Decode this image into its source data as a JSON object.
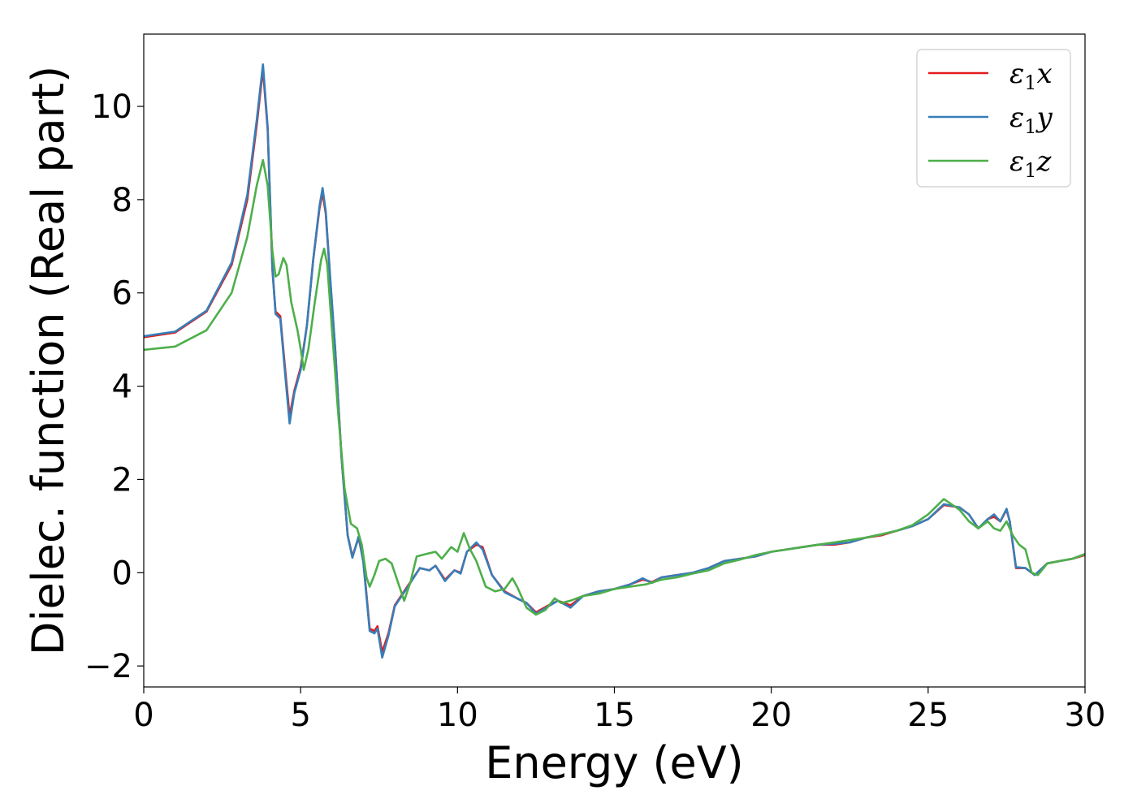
{
  "chart_data": {
    "type": "line",
    "title": "",
    "xlabel": "Energy (eV)",
    "ylabel": "Dielec. function (Real part)",
    "xlim": [
      0,
      30
    ],
    "ylim": [
      -2.45,
      11.55
    ],
    "x_ticks": [
      0,
      5,
      10,
      15,
      20,
      25,
      30
    ],
    "x_tick_labels": [
      "0",
      "5",
      "10",
      "15",
      "20",
      "25",
      "30"
    ],
    "y_ticks": [
      -2,
      0,
      2,
      4,
      6,
      8,
      10
    ],
    "y_tick_labels": [
      "−2",
      "0",
      "2",
      "4",
      "6",
      "8",
      "10"
    ],
    "grid": false,
    "legend_position": "top-right",
    "series": [
      {
        "name": "ε1x",
        "symbol": "ε",
        "subscript": "1",
        "component": "x",
        "color": "#e41a1c",
        "points": [
          [
            0,
            5.05
          ],
          [
            1,
            5.15
          ],
          [
            2,
            5.6
          ],
          [
            2.8,
            6.6
          ],
          [
            3.3,
            8.0
          ],
          [
            3.6,
            9.6
          ],
          [
            3.8,
            10.8
          ],
          [
            3.95,
            9.5
          ],
          [
            4.1,
            6.5
          ],
          [
            4.2,
            5.6
          ],
          [
            4.35,
            5.5
          ],
          [
            4.5,
            4.4
          ],
          [
            4.65,
            3.35
          ],
          [
            4.8,
            3.9
          ],
          [
            5.0,
            4.4
          ],
          [
            5.2,
            5.3
          ],
          [
            5.4,
            6.7
          ],
          [
            5.6,
            7.8
          ],
          [
            5.7,
            8.15
          ],
          [
            5.8,
            7.7
          ],
          [
            5.95,
            6.2
          ],
          [
            6.1,
            4.8
          ],
          [
            6.3,
            2.5
          ],
          [
            6.5,
            0.8
          ],
          [
            6.65,
            0.35
          ],
          [
            6.85,
            0.75
          ],
          [
            7.0,
            0.25
          ],
          [
            7.2,
            -1.2
          ],
          [
            7.35,
            -1.25
          ],
          [
            7.45,
            -1.15
          ],
          [
            7.6,
            -1.7
          ],
          [
            7.8,
            -1.3
          ],
          [
            8.0,
            -0.7
          ],
          [
            8.4,
            -0.3
          ],
          [
            8.8,
            0.1
          ],
          [
            9.1,
            0.05
          ],
          [
            9.3,
            0.15
          ],
          [
            9.6,
            -0.15
          ],
          [
            9.9,
            0.05
          ],
          [
            10.1,
            0.0
          ],
          [
            10.3,
            0.45
          ],
          [
            10.6,
            0.6
          ],
          [
            10.8,
            0.55
          ],
          [
            11.1,
            -0.05
          ],
          [
            11.5,
            -0.4
          ],
          [
            11.9,
            -0.55
          ],
          [
            12.2,
            -0.65
          ],
          [
            12.5,
            -0.85
          ],
          [
            12.9,
            -0.7
          ],
          [
            13.2,
            -0.6
          ],
          [
            13.6,
            -0.7
          ],
          [
            14.0,
            -0.5
          ],
          [
            14.5,
            -0.4
          ],
          [
            15.0,
            -0.35
          ],
          [
            15.5,
            -0.25
          ],
          [
            15.9,
            -0.15
          ],
          [
            16.2,
            -0.2
          ],
          [
            16.5,
            -0.1
          ],
          [
            17.0,
            -0.05
          ],
          [
            17.5,
            0.0
          ],
          [
            18.0,
            0.1
          ],
          [
            18.5,
            0.25
          ],
          [
            19.0,
            0.3
          ],
          [
            19.5,
            0.35
          ],
          [
            20.0,
            0.45
          ],
          [
            20.5,
            0.5
          ],
          [
            21.0,
            0.55
          ],
          [
            21.5,
            0.6
          ],
          [
            22.0,
            0.6
          ],
          [
            22.5,
            0.65
          ],
          [
            23.0,
            0.75
          ],
          [
            23.5,
            0.8
          ],
          [
            24.0,
            0.9
          ],
          [
            24.5,
            1.0
          ],
          [
            25.0,
            1.15
          ],
          [
            25.5,
            1.45
          ],
          [
            26.0,
            1.4
          ],
          [
            26.3,
            1.25
          ],
          [
            26.6,
            0.95
          ],
          [
            26.9,
            1.15
          ],
          [
            27.1,
            1.2
          ],
          [
            27.3,
            1.1
          ],
          [
            27.5,
            1.35
          ],
          [
            27.6,
            1.1
          ],
          [
            27.8,
            0.1
          ],
          [
            28.1,
            0.1
          ],
          [
            28.4,
            -0.05
          ],
          [
            28.8,
            0.2
          ],
          [
            29.2,
            0.25
          ],
          [
            29.6,
            0.3
          ],
          [
            30,
            0.38
          ]
        ]
      },
      {
        "name": "ε1y",
        "symbol": "ε",
        "subscript": "1",
        "component": "y",
        "color": "#377eb8",
        "points": [
          [
            0,
            5.07
          ],
          [
            1,
            5.17
          ],
          [
            2,
            5.62
          ],
          [
            2.8,
            6.65
          ],
          [
            3.3,
            8.1
          ],
          [
            3.6,
            9.7
          ],
          [
            3.8,
            10.9
          ],
          [
            3.95,
            9.55
          ],
          [
            4.1,
            6.55
          ],
          [
            4.2,
            5.55
          ],
          [
            4.35,
            5.45
          ],
          [
            4.5,
            4.3
          ],
          [
            4.65,
            3.2
          ],
          [
            4.8,
            3.85
          ],
          [
            5.0,
            4.35
          ],
          [
            5.2,
            5.3
          ],
          [
            5.4,
            6.7
          ],
          [
            5.6,
            7.85
          ],
          [
            5.7,
            8.25
          ],
          [
            5.8,
            7.75
          ],
          [
            5.95,
            6.25
          ],
          [
            6.1,
            4.8
          ],
          [
            6.3,
            2.5
          ],
          [
            6.5,
            0.8
          ],
          [
            6.65,
            0.32
          ],
          [
            6.85,
            0.78
          ],
          [
            7.0,
            0.22
          ],
          [
            7.2,
            -1.25
          ],
          [
            7.35,
            -1.3
          ],
          [
            7.45,
            -1.2
          ],
          [
            7.6,
            -1.82
          ],
          [
            7.8,
            -1.35
          ],
          [
            8.0,
            -0.72
          ],
          [
            8.4,
            -0.32
          ],
          [
            8.8,
            0.1
          ],
          [
            9.1,
            0.05
          ],
          [
            9.3,
            0.15
          ],
          [
            9.6,
            -0.18
          ],
          [
            9.9,
            0.05
          ],
          [
            10.1,
            -0.02
          ],
          [
            10.3,
            0.45
          ],
          [
            10.6,
            0.65
          ],
          [
            10.8,
            0.5
          ],
          [
            11.1,
            -0.05
          ],
          [
            11.5,
            -0.42
          ],
          [
            11.9,
            -0.55
          ],
          [
            12.2,
            -0.65
          ],
          [
            12.5,
            -0.88
          ],
          [
            12.9,
            -0.72
          ],
          [
            13.2,
            -0.6
          ],
          [
            13.6,
            -0.75
          ],
          [
            14.0,
            -0.5
          ],
          [
            14.5,
            -0.4
          ],
          [
            15.0,
            -0.35
          ],
          [
            15.5,
            -0.25
          ],
          [
            15.9,
            -0.12
          ],
          [
            16.2,
            -0.22
          ],
          [
            16.5,
            -0.1
          ],
          [
            17.0,
            -0.05
          ],
          [
            17.5,
            0.0
          ],
          [
            18.0,
            0.1
          ],
          [
            18.5,
            0.25
          ],
          [
            19.0,
            0.3
          ],
          [
            19.5,
            0.35
          ],
          [
            20.0,
            0.45
          ],
          [
            20.5,
            0.5
          ],
          [
            21.0,
            0.55
          ],
          [
            21.5,
            0.6
          ],
          [
            22.0,
            0.62
          ],
          [
            22.5,
            0.65
          ],
          [
            23.0,
            0.75
          ],
          [
            23.5,
            0.82
          ],
          [
            24.0,
            0.9
          ],
          [
            24.5,
            1.0
          ],
          [
            25.0,
            1.15
          ],
          [
            25.5,
            1.47
          ],
          [
            26.0,
            1.4
          ],
          [
            26.3,
            1.25
          ],
          [
            26.6,
            0.95
          ],
          [
            26.9,
            1.15
          ],
          [
            27.1,
            1.25
          ],
          [
            27.3,
            1.1
          ],
          [
            27.5,
            1.37
          ],
          [
            27.6,
            1.1
          ],
          [
            27.8,
            0.12
          ],
          [
            28.1,
            0.1
          ],
          [
            28.4,
            -0.05
          ],
          [
            28.8,
            0.2
          ],
          [
            29.2,
            0.25
          ],
          [
            29.6,
            0.3
          ],
          [
            30,
            0.4
          ]
        ]
      },
      {
        "name": "ε1z",
        "symbol": "ε",
        "subscript": "1",
        "component": "z",
        "color": "#4daf4a",
        "points": [
          [
            0,
            4.78
          ],
          [
            1,
            4.85
          ],
          [
            2,
            5.2
          ],
          [
            2.8,
            6.0
          ],
          [
            3.3,
            7.2
          ],
          [
            3.6,
            8.3
          ],
          [
            3.8,
            8.85
          ],
          [
            3.95,
            8.3
          ],
          [
            4.1,
            6.9
          ],
          [
            4.2,
            6.35
          ],
          [
            4.3,
            6.4
          ],
          [
            4.45,
            6.75
          ],
          [
            4.55,
            6.6
          ],
          [
            4.7,
            5.8
          ],
          [
            4.9,
            5.2
          ],
          [
            5.0,
            4.8
          ],
          [
            5.1,
            4.35
          ],
          [
            5.25,
            4.8
          ],
          [
            5.45,
            5.8
          ],
          [
            5.65,
            6.7
          ],
          [
            5.75,
            6.95
          ],
          [
            5.85,
            6.6
          ],
          [
            6.0,
            5.2
          ],
          [
            6.2,
            3.4
          ],
          [
            6.4,
            1.8
          ],
          [
            6.6,
            1.05
          ],
          [
            6.8,
            0.95
          ],
          [
            6.95,
            0.6
          ],
          [
            7.1,
            -0.1
          ],
          [
            7.2,
            -0.3
          ],
          [
            7.35,
            -0.05
          ],
          [
            7.5,
            0.25
          ],
          [
            7.7,
            0.3
          ],
          [
            7.9,
            0.2
          ],
          [
            8.1,
            -0.2
          ],
          [
            8.3,
            -0.6
          ],
          [
            8.5,
            -0.2
          ],
          [
            8.7,
            0.35
          ],
          [
            9.0,
            0.4
          ],
          [
            9.3,
            0.45
          ],
          [
            9.5,
            0.3
          ],
          [
            9.8,
            0.55
          ],
          [
            10.0,
            0.45
          ],
          [
            10.2,
            0.85
          ],
          [
            10.4,
            0.5
          ],
          [
            10.6,
            0.25
          ],
          [
            10.9,
            -0.3
          ],
          [
            11.2,
            -0.4
          ],
          [
            11.5,
            -0.35
          ],
          [
            11.75,
            -0.12
          ],
          [
            11.9,
            -0.3
          ],
          [
            12.2,
            -0.75
          ],
          [
            12.5,
            -0.9
          ],
          [
            12.8,
            -0.8
          ],
          [
            13.1,
            -0.55
          ],
          [
            13.3,
            -0.65
          ],
          [
            13.6,
            -0.6
          ],
          [
            14.0,
            -0.5
          ],
          [
            14.5,
            -0.45
          ],
          [
            15.0,
            -0.35
          ],
          [
            15.5,
            -0.3
          ],
          [
            16.0,
            -0.25
          ],
          [
            16.5,
            -0.15
          ],
          [
            17.0,
            -0.1
          ],
          [
            17.5,
            -0.02
          ],
          [
            18.0,
            0.05
          ],
          [
            18.5,
            0.2
          ],
          [
            19.0,
            0.28
          ],
          [
            19.5,
            0.38
          ],
          [
            20.0,
            0.45
          ],
          [
            20.5,
            0.5
          ],
          [
            21.0,
            0.55
          ],
          [
            21.5,
            0.6
          ],
          [
            22.0,
            0.65
          ],
          [
            22.5,
            0.7
          ],
          [
            23.0,
            0.75
          ],
          [
            23.5,
            0.82
          ],
          [
            24.0,
            0.9
          ],
          [
            24.5,
            1.02
          ],
          [
            25.0,
            1.25
          ],
          [
            25.5,
            1.58
          ],
          [
            26.0,
            1.35
          ],
          [
            26.3,
            1.1
          ],
          [
            26.6,
            0.95
          ],
          [
            26.9,
            1.1
          ],
          [
            27.1,
            0.95
          ],
          [
            27.3,
            0.9
          ],
          [
            27.5,
            1.1
          ],
          [
            27.7,
            0.8
          ],
          [
            27.9,
            0.6
          ],
          [
            28.1,
            0.5
          ],
          [
            28.3,
            0.0
          ],
          [
            28.5,
            -0.05
          ],
          [
            28.8,
            0.2
          ],
          [
            29.2,
            0.25
          ],
          [
            29.6,
            0.3
          ],
          [
            30,
            0.4
          ]
        ]
      }
    ]
  }
}
